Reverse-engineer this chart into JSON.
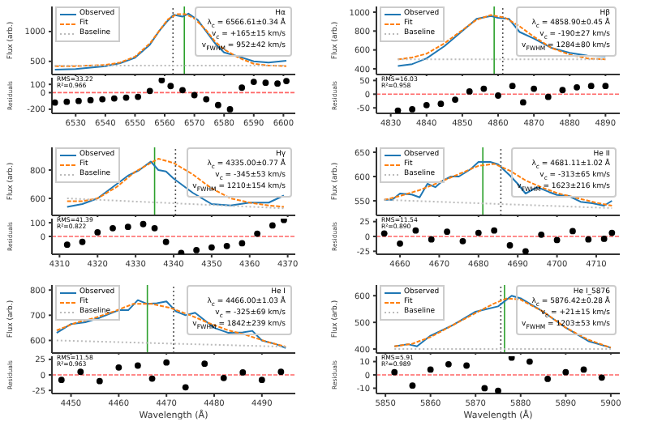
{
  "chart_data": [
    {
      "type": "line",
      "ylabel": "Flux (arb.)",
      "xlim": [
        6522,
        6604
      ],
      "xticks": [
        6530,
        6540,
        6550,
        6560,
        6570,
        6580,
        6590,
        6600
      ],
      "ylim": [
        280,
        1420
      ],
      "yticks": [
        500,
        1000
      ],
      "tick_labels": "y",
      "legend": "top left",
      "annotations": [
        "Hα",
        "λ$_{c}$ = 6566.61±0.34 Å",
        "v$_{c}$ = +165±15 km/s",
        "v$_{FWHM}$ = 952±42 km/s"
      ],
      "ref_lines": [
        {
          "axis": "x",
          "value": 6562.8,
          "color": "#555555",
          "line_style": "dotted"
        },
        {
          "axis": "x",
          "value": 6566.61,
          "color": "#2ca02c",
          "line_style": "solid"
        }
      ],
      "series": [
        {
          "name": "Observed",
          "color": "#1f77b4",
          "line_style": "solid",
          "x": [
            6523,
            6530,
            6540,
            6545,
            6550,
            6555,
            6558,
            6561,
            6563,
            6566,
            6568,
            6571,
            6574,
            6577,
            6580,
            6585,
            6590,
            6595,
            6601
          ],
          "values": [
            360,
            370,
            420,
            470,
            560,
            780,
            1000,
            1180,
            1280,
            1250,
            1300,
            1200,
            1000,
            800,
            650,
            580,
            500,
            480,
            510
          ]
        },
        {
          "name": "Fit",
          "color": "#ff7f0e",
          "line_style": "dashed",
          "x": [
            6523,
            6530,
            6540,
            6545,
            6550,
            6555,
            6558,
            6561,
            6564,
            6567,
            6570,
            6574,
            6577,
            6580,
            6585,
            6590,
            6595,
            6601
          ],
          "values": [
            420,
            420,
            440,
            480,
            580,
            800,
            1000,
            1200,
            1290,
            1290,
            1220,
            1020,
            830,
            700,
            560,
            460,
            430,
            420
          ]
        },
        {
          "name": "Baseline",
          "color": "#bbbbbb",
          "line_style": "dotted",
          "x": [
            6523,
            6601
          ],
          "values": [
            430,
            430
          ]
        }
      ]
    },
    {
      "type": "scatter",
      "ylabel": "Residuals",
      "xlim": [
        6522,
        6604
      ],
      "xticks": [
        6530,
        6540,
        6550,
        6560,
        6570,
        6580,
        6590,
        6600
      ],
      "ylim": [
        -250,
        180
      ],
      "yticks": [
        -200,
        0,
        100
      ],
      "marker": "circle",
      "color": "#000000",
      "annotations": [
        "RMS=33.22",
        "R²=0.966"
      ],
      "ref_lines": [
        {
          "axis": "y",
          "value": 0,
          "color": "#ff6666",
          "line_style": "dashed"
        }
      ],
      "x": [
        6523,
        6527,
        6531,
        6535,
        6539,
        6543,
        6547,
        6551,
        6555,
        6559,
        6562,
        6566,
        6570,
        6574,
        6578,
        6582,
        6586,
        6590,
        6594,
        6598,
        6601
      ],
      "values": [
        -120,
        -110,
        -100,
        -90,
        -80,
        -70,
        -60,
        -50,
        20,
        150,
        80,
        30,
        -30,
        -80,
        -150,
        -200,
        60,
        130,
        120,
        110,
        140
      ]
    },
    {
      "type": "line",
      "ylabel": "Flux (arb.)",
      "xlim": [
        4826,
        4894
      ],
      "xticks": [
        4830,
        4840,
        4850,
        4860,
        4870,
        4880,
        4890
      ],
      "ylim": [
        340,
        1060
      ],
      "yticks": [
        400,
        600,
        800,
        1000
      ],
      "tick_labels": "y",
      "legend": "top left",
      "annotations": [
        "Hβ",
        "λ$_{c}$ = 4858.90±0.45 Å",
        "v$_{c}$ = -190±27 km/s",
        "v$_{FWHM}$ = 1284±80 km/s"
      ],
      "ref_lines": [
        {
          "axis": "x",
          "value": 4861.3,
          "color": "#555555",
          "line_style": "dotted"
        },
        {
          "axis": "x",
          "value": 4858.9,
          "color": "#2ca02c",
          "line_style": "solid"
        }
      ],
      "series": [
        {
          "name": "Observed",
          "color": "#1f77b4",
          "line_style": "solid",
          "x": [
            4832,
            4836,
            4840,
            4845,
            4850,
            4854,
            4858,
            4860,
            4863,
            4866,
            4870,
            4875,
            4880,
            4885,
            4890
          ],
          "values": [
            430,
            450,
            510,
            640,
            800,
            930,
            960,
            940,
            930,
            790,
            720,
            620,
            570,
            540,
            530
          ]
        },
        {
          "name": "Fit",
          "color": "#ff7f0e",
          "line_style": "dashed",
          "x": [
            4832,
            4836,
            4840,
            4845,
            4850,
            4854,
            4858,
            4862,
            4866,
            4870,
            4875,
            4880,
            4885,
            4890
          ],
          "values": [
            500,
            520,
            560,
            670,
            810,
            920,
            970,
            940,
            850,
            740,
            620,
            550,
            510,
            500
          ]
        },
        {
          "name": "Baseline",
          "color": "#bbbbbb",
          "line_style": "dotted",
          "x": [
            4832,
            4890
          ],
          "values": [
            500,
            500
          ]
        }
      ]
    },
    {
      "type": "scatter",
      "ylabel": "Residuals",
      "xlim": [
        4826,
        4894
      ],
      "xticks": [
        4830,
        4840,
        4850,
        4860,
        4870,
        4880,
        4890
      ],
      "ylim": [
        -70,
        60
      ],
      "yticks": [
        -50,
        0,
        50
      ],
      "marker": "circle",
      "color": "#000000",
      "annotations": [
        "RMS=16.03",
        "R²=0.958"
      ],
      "ref_lines": [
        {
          "axis": "y",
          "value": 0,
          "color": "#ff6666",
          "line_style": "dashed"
        }
      ],
      "x": [
        4832,
        4836,
        4840,
        4844,
        4848,
        4852,
        4856,
        4860,
        4864,
        4867,
        4870,
        4874,
        4878,
        4882,
        4886,
        4890
      ],
      "values": [
        -60,
        -55,
        -40,
        -35,
        -20,
        10,
        20,
        -5,
        30,
        -30,
        20,
        -10,
        15,
        25,
        30,
        30
      ]
    },
    {
      "type": "line",
      "ylabel": "Flux (arb.)",
      "xlim": [
        4308,
        4372
      ],
      "xticks": [
        4310,
        4320,
        4330,
        4340,
        4350,
        4360,
        4370
      ],
      "ylim": [
        480,
        960
      ],
      "yticks": [
        600,
        800
      ],
      "tick_labels": "y",
      "legend": "top left",
      "annotations": [
        "Hγ",
        "λ$_{c}$ = 4335.00±0.77 Å",
        "v$_{c}$ = -345±53 km/s",
        "v$_{FWHM}$ = 1210±154 km/s"
      ],
      "ref_lines": [
        {
          "axis": "x",
          "value": 4340.5,
          "color": "#555555",
          "line_style": "dotted"
        },
        {
          "axis": "x",
          "value": 4335,
          "color": "#2ca02c",
          "line_style": "solid"
        }
      ],
      "series": [
        {
          "name": "Observed",
          "color": "#1f77b4",
          "line_style": "solid",
          "x": [
            4312,
            4316,
            4320,
            4325,
            4328,
            4331,
            4334,
            4336,
            4338,
            4340,
            4345,
            4350,
            4355,
            4360,
            4365,
            4369
          ],
          "values": [
            540,
            560,
            600,
            700,
            760,
            800,
            860,
            800,
            790,
            740,
            640,
            560,
            550,
            570,
            570,
            620
          ]
        },
        {
          "name": "Fit",
          "color": "#ff7f0e",
          "line_style": "dashed",
          "x": [
            4312,
            4316,
            4320,
            4325,
            4330,
            4336,
            4340,
            4345,
            4350,
            4355,
            4360,
            4365,
            4369
          ],
          "values": [
            580,
            580,
            600,
            680,
            790,
            880,
            850,
            770,
            670,
            600,
            570,
            550,
            540
          ]
        },
        {
          "name": "Baseline",
          "color": "#bbbbbb",
          "line_style": "dotted",
          "x": [
            4312,
            4369
          ],
          "values": [
            600,
            530
          ]
        }
      ]
    },
    {
      "type": "scatter",
      "ylabel": "Residuals",
      "xlim": [
        4308,
        4372
      ],
      "xticks": [
        4310,
        4320,
        4330,
        4340,
        4350,
        4360,
        4370
      ],
      "ylim": [
        -130,
        130
      ],
      "yticks": [
        0,
        100
      ],
      "marker": "circle",
      "color": "#000000",
      "annotations": [
        "RMS=41.39",
        "R²=0.822"
      ],
      "ref_lines": [
        {
          "axis": "y",
          "value": 0,
          "color": "#ff6666",
          "line_style": "dashed"
        }
      ],
      "x": [
        4312,
        4316,
        4320,
        4324,
        4328,
        4332,
        4335,
        4338,
        4342,
        4346,
        4350,
        4354,
        4358,
        4362,
        4366,
        4369
      ],
      "values": [
        -60,
        -40,
        30,
        60,
        70,
        90,
        60,
        -40,
        -120,
        -100,
        -80,
        -70,
        -50,
        20,
        80,
        120
      ]
    },
    {
      "type": "line",
      "ylabel": "Flux (arb.)",
      "xlim": [
        4654,
        4716
      ],
      "xticks": [
        4660,
        4670,
        4680,
        4690,
        4700,
        4710
      ],
      "ylim": [
        520,
        660
      ],
      "yticks": [
        550,
        600,
        650
      ],
      "tick_labels": "y",
      "legend": "top left",
      "annotations": [
        "He II",
        "λ$_{c}$ = 4681.11±1.02 Å",
        "v$_{c}$ = -313±65 km/s",
        "v$_{FWHM}$ = 1623±216 km/s"
      ],
      "ref_lines": [
        {
          "axis": "x",
          "value": 4685.7,
          "color": "#555555",
          "line_style": "dotted"
        },
        {
          "axis": "x",
          "value": 4681.11,
          "color": "#2ca02c",
          "line_style": "solid"
        }
      ],
      "series": [
        {
          "name": "Observed",
          "color": "#1f77b4",
          "line_style": "solid",
          "x": [
            4656,
            4658,
            4660,
            4663,
            4665,
            4667,
            4669,
            4671,
            4673,
            4675,
            4678,
            4680,
            4683,
            4685,
            4688,
            4690,
            4692,
            4695,
            4698,
            4700,
            4703,
            4706,
            4709,
            4712,
            4714
          ],
          "values": [
            552,
            552,
            565,
            563,
            557,
            585,
            578,
            592,
            600,
            600,
            615,
            630,
            630,
            625,
            602,
            585,
            565,
            578,
            568,
            562,
            560,
            548,
            545,
            540,
            550
          ]
        },
        {
          "name": "Fit",
          "color": "#ff7f0e",
          "line_style": "dashed",
          "x": [
            4656,
            4660,
            4665,
            4670,
            4675,
            4680,
            4684,
            4688,
            4692,
            4696,
            4700,
            4705,
            4710,
            4714
          ],
          "values": [
            552,
            560,
            572,
            588,
            605,
            622,
            626,
            612,
            592,
            578,
            566,
            556,
            546,
            540
          ]
        },
        {
          "name": "Baseline",
          "color": "#bbbbbb",
          "line_style": "dotted",
          "x": [
            4656,
            4714
          ],
          "values": [
            552,
            535
          ]
        }
      ]
    },
    {
      "type": "scatter",
      "ylabel": "Residuals",
      "xlim": [
        4654,
        4716
      ],
      "xticks": [
        4660,
        4670,
        4680,
        4690,
        4700,
        4710
      ],
      "ylim": [
        -30,
        30
      ],
      "yticks": [
        -25,
        0,
        25
      ],
      "marker": "circle",
      "color": "#000000",
      "annotations": [
        "RMS=11.54",
        "R²=0.890"
      ],
      "ref_lines": [
        {
          "axis": "y",
          "value": 0,
          "color": "#ff6666",
          "line_style": "dashed"
        }
      ],
      "x": [
        4656,
        4660,
        4664,
        4668,
        4672,
        4676,
        4680,
        4684,
        4688,
        4692,
        4696,
        4700,
        4704,
        4708,
        4712,
        4714
      ],
      "values": [
        5,
        -12,
        10,
        -5,
        8,
        -8,
        6,
        10,
        -15,
        -25,
        3,
        -6,
        9,
        -5,
        -4,
        6
      ]
    },
    {
      "type": "line",
      "ylabel": "Flux (arb.)",
      "xlim": [
        4446,
        4497
      ],
      "xticks": [
        4450,
        4460,
        4470,
        4480,
        4490
      ],
      "ylim": [
        550,
        820
      ],
      "yticks": [
        600,
        700,
        800
      ],
      "tick_labels": "y",
      "legend": "top left",
      "annotations": [
        "He I",
        "λ$_{c}$ = 4466.00±1.03 Å",
        "v$_{c}$ = -325±69 km/s",
        "v$_{FWHM}$ = 1842±239 km/s"
      ],
      "ref_lines": [
        {
          "axis": "x",
          "value": 4471.5,
          "color": "#555555",
          "line_style": "dotted"
        },
        {
          "axis": "x",
          "value": 4466,
          "color": "#2ca02c",
          "line_style": "solid"
        }
      ],
      "series": [
        {
          "name": "Observed",
          "color": "#1f77b4",
          "line_style": "solid",
          "x": [
            4447,
            4450,
            4453,
            4456,
            4460,
            4462,
            4464,
            4466,
            4468,
            4470,
            4472,
            4474,
            4476,
            4478,
            4480,
            4483,
            4486,
            4488,
            4490,
            4493,
            4495
          ],
          "values": [
            630,
            665,
            672,
            690,
            720,
            720,
            760,
            745,
            748,
            755,
            715,
            700,
            710,
            680,
            650,
            630,
            632,
            638,
            600,
            585,
            570
          ]
        },
        {
          "name": "Fit",
          "color": "#ff7f0e",
          "line_style": "dashed",
          "x": [
            4447,
            4451,
            4455,
            4459,
            4463,
            4467,
            4471,
            4475,
            4479,
            4483,
            4487,
            4491,
            4495
          ],
          "values": [
            640,
            670,
            690,
            715,
            745,
            745,
            728,
            700,
            668,
            640,
            620,
            595,
            575
          ]
        },
        {
          "name": "Baseline",
          "color": "#bbbbbb",
          "line_style": "dotted",
          "x": [
            4447,
            4495
          ],
          "values": [
            600,
            575
          ]
        }
      ]
    },
    {
      "type": "scatter",
      "ylabel": "Residuals",
      "xlabel": "Wavelength (Å)",
      "xlim": [
        4446,
        4497
      ],
      "xticks": [
        4450,
        4460,
        4470,
        4480,
        4490
      ],
      "ylim": [
        -30,
        30
      ],
      "yticks": [
        -25,
        0,
        25
      ],
      "marker": "circle",
      "color": "#000000",
      "annotations": [
        "RMS=11.58",
        "R²=0.963"
      ],
      "ref_lines": [
        {
          "axis": "y",
          "value": 0,
          "color": "#ff6666",
          "line_style": "dashed"
        }
      ],
      "x": [
        4448,
        4452,
        4456,
        4460,
        4464,
        4467,
        4470,
        4474,
        4478,
        4482,
        4486,
        4490,
        4494
      ],
      "values": [
        -8,
        5,
        -10,
        12,
        15,
        -6,
        20,
        -20,
        18,
        -5,
        4,
        -8,
        5
      ]
    },
    {
      "type": "line",
      "ylabel": "Flux (arb.)",
      "xlim": [
        5848,
        5902
      ],
      "xticks": [
        5850,
        5860,
        5870,
        5880,
        5890,
        5900
      ],
      "ylim": [
        385,
        640
      ],
      "yticks": [
        400,
        500,
        600
      ],
      "tick_labels": "y",
      "legend": "top left",
      "annotations": [
        "He I_5876",
        "λ$_{c}$ = 5876.42±0.28 Å",
        "v$_{c}$ = +21±15 km/s",
        "v$_{FWHM}$ = 1203±53 km/s"
      ],
      "ref_lines": [
        {
          "axis": "x",
          "value": 5875.6,
          "color": "#555555",
          "line_style": "dotted"
        },
        {
          "axis": "x",
          "value": 5876.42,
          "color": "#2ca02c",
          "line_style": "solid"
        }
      ],
      "series": [
        {
          "name": "Observed",
          "color": "#1f77b4",
          "line_style": "solid",
          "x": [
            5852,
            5855,
            5857,
            5860,
            5865,
            5870,
            5875,
            5878,
            5880,
            5885,
            5890,
            5895,
            5900
          ],
          "values": [
            410,
            418,
            410,
            450,
            490,
            540,
            560,
            600,
            590,
            540,
            480,
            430,
            405
          ]
        },
        {
          "name": "Fit",
          "color": "#ff7f0e",
          "line_style": "dashed",
          "x": [
            5852,
            5856,
            5860,
            5865,
            5870,
            5874,
            5877,
            5880,
            5885,
            5890,
            5895,
            5900
          ],
          "values": [
            410,
            420,
            445,
            490,
            535,
            570,
            590,
            585,
            540,
            480,
            435,
            405
          ]
        },
        {
          "name": "Baseline",
          "color": "#bbbbbb",
          "line_style": "dotted",
          "x": [
            5852,
            5900
          ],
          "values": [
            400,
            400
          ]
        }
      ]
    },
    {
      "type": "scatter",
      "ylabel": "Residuals",
      "xlabel": "Wavelength (Å)",
      "xlim": [
        5848,
        5902
      ],
      "xticks": [
        5850,
        5860,
        5870,
        5880,
        5890,
        5900
      ],
      "ylim": [
        -14,
        14
      ],
      "yticks": [
        -10,
        0,
        10
      ],
      "marker": "circle",
      "color": "#000000",
      "annotations": [
        "RMS=5.91",
        "R²=0.989"
      ],
      "ref_lines": [
        {
          "axis": "y",
          "value": 0,
          "color": "#ff6666",
          "line_style": "dashed"
        }
      ],
      "x": [
        5852,
        5856,
        5860,
        5864,
        5868,
        5872,
        5875,
        5878,
        5882,
        5886,
        5890,
        5894,
        5898
      ],
      "values": [
        2,
        -8,
        4,
        8,
        7,
        -10,
        -12,
        13,
        10,
        -3,
        2,
        4,
        -2
      ]
    }
  ]
}
